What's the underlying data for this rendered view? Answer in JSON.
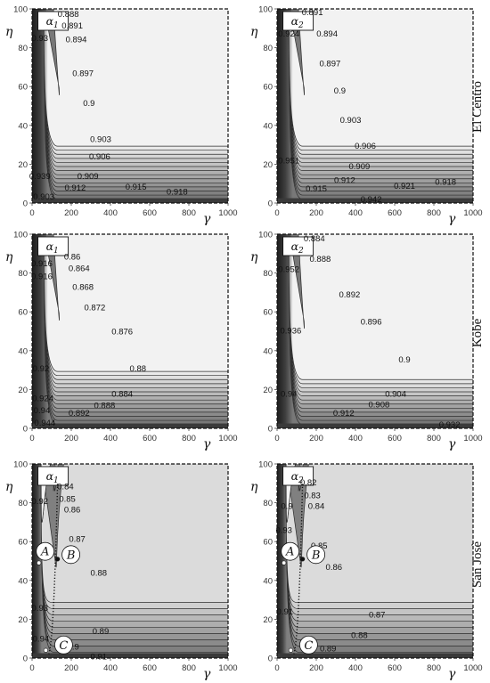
{
  "figure": {
    "row_labels": [
      "El Centro",
      "Kobe",
      "San Josè"
    ]
  },
  "chart_data": [
    {
      "type": "contour",
      "record": "El Centro",
      "panel_tag": "α",
      "panel_sub": "1",
      "xlabel": "γ",
      "ylabel": "η",
      "xlim": [
        0,
        1000
      ],
      "ylim": [
        0,
        100
      ],
      "xticks": [
        0,
        200,
        400,
        600,
        800,
        1000
      ],
      "yticks": [
        0,
        20,
        40,
        60,
        80,
        100
      ],
      "contour_levels": [
        0.888,
        0.891,
        0.894,
        0.897,
        0.9,
        0.903,
        0.906,
        0.909,
        0.912,
        0.915,
        0.918,
        0.93,
        0.939,
        0.903
      ],
      "labels": [
        {
          "text": "0.888",
          "x": 185,
          "y": 97.5
        },
        {
          "text": "0.891",
          "x": 205,
          "y": 91.5
        },
        {
          "text": "0.894",
          "x": 225,
          "y": 84.5
        },
        {
          "text": "0.897",
          "x": 260,
          "y": 67
        },
        {
          "text": "0.9",
          "x": 290,
          "y": 51.5
        },
        {
          "text": "0.903",
          "x": 350,
          "y": 33
        },
        {
          "text": "0.906",
          "x": 345,
          "y": 24
        },
        {
          "text": "0.909",
          "x": 285,
          "y": 14
        },
        {
          "text": "0.912",
          "x": 220,
          "y": 8
        },
        {
          "text": "0.915",
          "x": 530,
          "y": 8.5
        },
        {
          "text": "0.918",
          "x": 740,
          "y": 6
        },
        {
          "text": "0.93",
          "x": 40,
          "y": 85
        },
        {
          "text": "0.939",
          "x": 40,
          "y": 14
        },
        {
          "text": "0.903",
          "x": 60,
          "y": 3.5
        }
      ]
    },
    {
      "type": "contour",
      "record": "El Centro",
      "panel_tag": "α",
      "panel_sub": "2",
      "xlabel": "γ",
      "ylabel": "η",
      "xlim": [
        0,
        1000
      ],
      "ylim": [
        0,
        100
      ],
      "xticks": [
        0,
        200,
        400,
        600,
        800,
        1000
      ],
      "yticks": [
        0,
        20,
        40,
        60,
        80,
        100
      ],
      "contour_levels": [
        0.891,
        0.894,
        0.897,
        0.9,
        0.903,
        0.906,
        0.909,
        0.912,
        0.915,
        0.918,
        0.921,
        0.924,
        0.942,
        0.951
      ],
      "labels": [
        {
          "text": "0.891",
          "x": 180,
          "y": 98.5
        },
        {
          "text": "0.924",
          "x": 60,
          "y": 87.5
        },
        {
          "text": "0.894",
          "x": 255,
          "y": 87.5
        },
        {
          "text": "0.897",
          "x": 270,
          "y": 72
        },
        {
          "text": "0.9",
          "x": 320,
          "y": 58
        },
        {
          "text": "0.903",
          "x": 375,
          "y": 43
        },
        {
          "text": "0.906",
          "x": 450,
          "y": 29.5
        },
        {
          "text": "0.909",
          "x": 420,
          "y": 19
        },
        {
          "text": "0.912",
          "x": 345,
          "y": 12
        },
        {
          "text": "0.915",
          "x": 200,
          "y": 7.5
        },
        {
          "text": "0.942",
          "x": 480,
          "y": 2
        },
        {
          "text": "0.921",
          "x": 650,
          "y": 9
        },
        {
          "text": "0.918",
          "x": 860,
          "y": 11
        },
        {
          "text": "0.951",
          "x": 60,
          "y": 22
        }
      ]
    },
    {
      "type": "contour",
      "record": "Kobe",
      "panel_tag": "α",
      "panel_sub": "1",
      "xlabel": "γ",
      "ylabel": "η",
      "xlim": [
        0,
        1000
      ],
      "ylim": [
        0,
        100
      ],
      "xticks": [
        0,
        200,
        400,
        600,
        800,
        1000
      ],
      "yticks": [
        0,
        20,
        40,
        60,
        80,
        100
      ],
      "contour_levels": [
        0.86,
        0.864,
        0.868,
        0.872,
        0.876,
        0.88,
        0.884,
        0.888,
        0.892,
        0.916,
        0.92,
        0.924,
        0.94,
        0.944
      ],
      "labels": [
        {
          "text": "0.86",
          "x": 205,
          "y": 88.5
        },
        {
          "text": "0.916",
          "x": 50,
          "y": 85
        },
        {
          "text": "0.864",
          "x": 240,
          "y": 82.5
        },
        {
          "text": "0.916",
          "x": 50,
          "y": 78.5
        },
        {
          "text": "0.868",
          "x": 260,
          "y": 73
        },
        {
          "text": "0.872",
          "x": 320,
          "y": 62.5
        },
        {
          "text": "0.876",
          "x": 460,
          "y": 50
        },
        {
          "text": "0.88",
          "x": 540,
          "y": 31
        },
        {
          "text": "0.92",
          "x": 45,
          "y": 31
        },
        {
          "text": "0.884",
          "x": 460,
          "y": 18
        },
        {
          "text": "0.924",
          "x": 55,
          "y": 15.5
        },
        {
          "text": "0.94",
          "x": 50,
          "y": 9.5
        },
        {
          "text": "0.888",
          "x": 370,
          "y": 12
        },
        {
          "text": "0.892",
          "x": 240,
          "y": 8
        },
        {
          "text": "0.944",
          "x": 65,
          "y": 3
        }
      ]
    },
    {
      "type": "contour",
      "record": "Kobe",
      "panel_tag": "α",
      "panel_sub": "2",
      "xlabel": "γ",
      "ylabel": "η",
      "xlim": [
        0,
        1000
      ],
      "ylim": [
        0,
        100
      ],
      "xticks": [
        0,
        200,
        400,
        600,
        800,
        1000
      ],
      "yticks": [
        0,
        20,
        40,
        60,
        80,
        100
      ],
      "contour_levels": [
        0.884,
        0.888,
        0.892,
        0.896,
        0.9,
        0.904,
        0.908,
        0.912,
        0.932,
        0.936,
        0.94,
        0.952
      ],
      "labels": [
        {
          "text": "0.884",
          "x": 190,
          "y": 98
        },
        {
          "text": "0.888",
          "x": 220,
          "y": 87.5
        },
        {
          "text": "0.952",
          "x": 60,
          "y": 82
        },
        {
          "text": "0.892",
          "x": 370,
          "y": 69
        },
        {
          "text": "0.896",
          "x": 480,
          "y": 55
        },
        {
          "text": "0.936",
          "x": 70,
          "y": 50.5
        },
        {
          "text": "0.9",
          "x": 650,
          "y": 35.5
        },
        {
          "text": "0.904",
          "x": 605,
          "y": 18
        },
        {
          "text": "0.94",
          "x": 60,
          "y": 18
        },
        {
          "text": "0.908",
          "x": 520,
          "y": 12.5
        },
        {
          "text": "0.912",
          "x": 340,
          "y": 8
        },
        {
          "text": "0.932",
          "x": 880,
          "y": 2
        }
      ]
    },
    {
      "type": "contour",
      "record": "San Josè",
      "panel_tag": "α",
      "panel_sub": "1",
      "xlabel": "γ",
      "ylabel": "η",
      "xlim": [
        0,
        1000
      ],
      "ylim": [
        0,
        100
      ],
      "xticks": [
        0,
        200,
        400,
        600,
        800,
        1000
      ],
      "yticks": [
        0,
        20,
        40,
        60,
        80,
        100
      ],
      "contour_levels": [
        0.84,
        0.85,
        0.86,
        0.87,
        0.88,
        0.89,
        0.9,
        0.91,
        0.92,
        0.93,
        0.94
      ],
      "labels": [
        {
          "text": "0.84",
          "x": 170,
          "y": 88.5
        },
        {
          "text": "0.92",
          "x": 40,
          "y": 81
        },
        {
          "text": "0.85",
          "x": 180,
          "y": 82
        },
        {
          "text": "0.86",
          "x": 205,
          "y": 76.5
        },
        {
          "text": "0.87",
          "x": 230,
          "y": 61.5
        },
        {
          "text": "0.88",
          "x": 340,
          "y": 44
        },
        {
          "text": "0.93",
          "x": 40,
          "y": 26
        },
        {
          "text": "0.89",
          "x": 350,
          "y": 14
        },
        {
          "text": "0.94",
          "x": 45,
          "y": 10
        },
        {
          "text": "0.9",
          "x": 210,
          "y": 6
        },
        {
          "text": "0.91",
          "x": 340,
          "y": 1
        }
      ],
      "points": [
        {
          "label": "A",
          "x": 35,
          "y": 49
        },
        {
          "label": "B",
          "x": 130,
          "y": 51
        },
        {
          "label": "C",
          "x": 70,
          "y": 4
        }
      ]
    },
    {
      "type": "contour",
      "record": "San Josè",
      "panel_tag": "α",
      "panel_sub": "2",
      "xlabel": "γ",
      "ylabel": "η",
      "xlim": [
        0,
        1000
      ],
      "ylim": [
        0,
        100
      ],
      "xticks": [
        0,
        200,
        400,
        600,
        800,
        1000
      ],
      "yticks": [
        0,
        20,
        40,
        60,
        80,
        100
      ],
      "contour_levels": [
        0.82,
        0.83,
        0.84,
        0.85,
        0.86,
        0.87,
        0.88,
        0.89,
        0.9,
        0.91,
        0.93
      ],
      "labels": [
        {
          "text": "0.82",
          "x": 160,
          "y": 90.5
        },
        {
          "text": "0.83",
          "x": 180,
          "y": 84
        },
        {
          "text": "0.9",
          "x": 50,
          "y": 78.5
        },
        {
          "text": "0.84",
          "x": 200,
          "y": 78.5
        },
        {
          "text": "0.93",
          "x": 35,
          "y": 66
        },
        {
          "text": "0.85",
          "x": 215,
          "y": 58
        },
        {
          "text": "0.86",
          "x": 290,
          "y": 47
        },
        {
          "text": "0.91",
          "x": 40,
          "y": 24
        },
        {
          "text": "0.87",
          "x": 510,
          "y": 22.5
        },
        {
          "text": "0.88",
          "x": 420,
          "y": 12
        },
        {
          "text": "0.89",
          "x": 260,
          "y": 5
        }
      ],
      "points": [
        {
          "label": "A",
          "x": 35,
          "y": 49
        },
        {
          "label": "B",
          "x": 130,
          "y": 51
        },
        {
          "label": "C",
          "x": 70,
          "y": 4
        }
      ]
    }
  ]
}
